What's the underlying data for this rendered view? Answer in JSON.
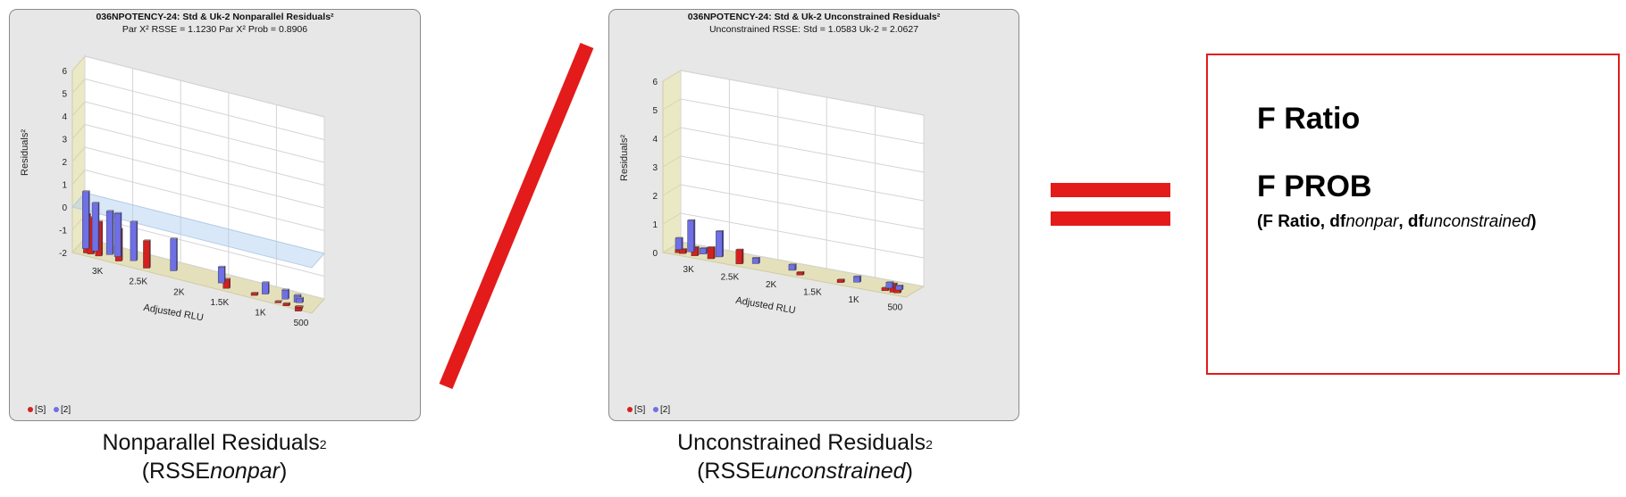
{
  "panel_nonpar": {
    "title": "036NPOTENCY-24: Std & Uk-2  Nonparallel Residuals²",
    "subtitle": "Par X² RSSE = 1.1230 Par X² Prob = 0.8906",
    "legend": [
      "[S]",
      "[2]"
    ],
    "caption_main": "Nonparallel Residuals",
    "caption_sup": "2",
    "caption_open": "(RSSE",
    "caption_italic": "nonpar",
    "caption_close": ")"
  },
  "panel_uncon": {
    "title": "036NPOTENCY-24: Std & Uk-2  Unconstrained Residuals²",
    "subtitle": "Unconstrained RSSE: Std = 1.0583  Uk-2 = 2.0627",
    "legend": [
      "[S]",
      "[2]"
    ],
    "caption_main": "Unconstrained Residuals",
    "caption_sup": "2",
    "caption_open": "(RSSE",
    "caption_italic": "unconstrained",
    "caption_close": ")"
  },
  "result": {
    "f_ratio": "F Ratio",
    "f_prob": "F PROB",
    "args_open": "(F Ratio, df",
    "args_nonpar": "nonpar",
    "args_mid": ", df",
    "args_uncon": "unconstrained",
    "args_close": ")"
  },
  "colors": {
    "accent_red": "#e31b1b",
    "series_s": "#d42020",
    "series_2": "#6f6fe6"
  },
  "chart_data": [
    {
      "type": "bar3d",
      "title": "036NPOTENCY-24: Std & Uk-2  Nonparallel Residuals²",
      "subtitle": "Par X² RSSE = 1.1230 Par X² Prob = 0.8906",
      "xlabel": "Adjusted RLU",
      "ylabel": "Residuals²",
      "x_ticks": [
        "3K",
        "2.5K",
        "2K",
        "1.5K",
        "1K",
        "500"
      ],
      "y_ticks": [
        "-2",
        "-1",
        "0",
        "1",
        "2",
        "3",
        "4",
        "5",
        "6"
      ],
      "ylim": [
        -2,
        6
      ],
      "legend": [
        "[S]",
        "[2]"
      ],
      "series": [
        {
          "name": "[S]",
          "points": [
            [
              3150,
              -0.3
            ],
            [
              3100,
              -0.4
            ],
            [
              3000,
              -0.5
            ],
            [
              2750,
              -0.6
            ],
            [
              2400,
              -0.8
            ],
            [
              1400,
              -1.6
            ],
            [
              1050,
              -1.9
            ],
            [
              750,
              -2.0
            ],
            [
              650,
              -2.1
            ],
            [
              500,
              -2.2
            ],
            [
              480,
              -2.0
            ]
          ]
        },
        {
          "name": "[2]",
          "points": [
            [
              3200,
              0.5
            ],
            [
              3080,
              0.1
            ],
            [
              2900,
              -0.1
            ],
            [
              2800,
              -0.1
            ],
            [
              2600,
              -0.3
            ],
            [
              2100,
              -0.6
            ],
            [
              1500,
              -1.3
            ],
            [
              950,
              -1.5
            ],
            [
              700,
              -1.6
            ],
            [
              550,
              -1.7
            ],
            [
              520,
              -1.8
            ]
          ]
        }
      ]
    },
    {
      "type": "bar3d",
      "title": "036NPOTENCY-24: Std & Uk-2  Unconstrained Residuals²",
      "subtitle": "Unconstrained RSSE: Std = 1.0583  Uk-2 = 2.0627",
      "xlabel": "Adjusted RLU",
      "ylabel": "Residuals²",
      "x_ticks": [
        "3K",
        "2.5K",
        "2K",
        "1.5K",
        "1K",
        "500"
      ],
      "y_ticks": [
        "0",
        "1",
        "2",
        "3",
        "4",
        "5",
        "6"
      ],
      "ylim": [
        0,
        6
      ],
      "legend": [
        "[S]",
        "[2]"
      ],
      "series": [
        {
          "name": "[S]",
          "points": [
            [
              3150,
              0.1
            ],
            [
              3100,
              0.15
            ],
            [
              2950,
              0.3
            ],
            [
              2750,
              0.4
            ],
            [
              2400,
              0.5
            ],
            [
              1650,
              0.1
            ],
            [
              1150,
              0.1
            ],
            [
              600,
              0.1
            ],
            [
              500,
              0.3
            ],
            [
              450,
              0.2
            ]
          ]
        },
        {
          "name": "[2]",
          "points": [
            [
              3200,
              0.4
            ],
            [
              3050,
              1.1
            ],
            [
              2900,
              0.2
            ],
            [
              2700,
              0.9
            ],
            [
              2250,
              0.2
            ],
            [
              1800,
              0.2
            ],
            [
              1000,
              0.2
            ],
            [
              600,
              0.2
            ],
            [
              480,
              0.15
            ]
          ]
        }
      ]
    }
  ]
}
